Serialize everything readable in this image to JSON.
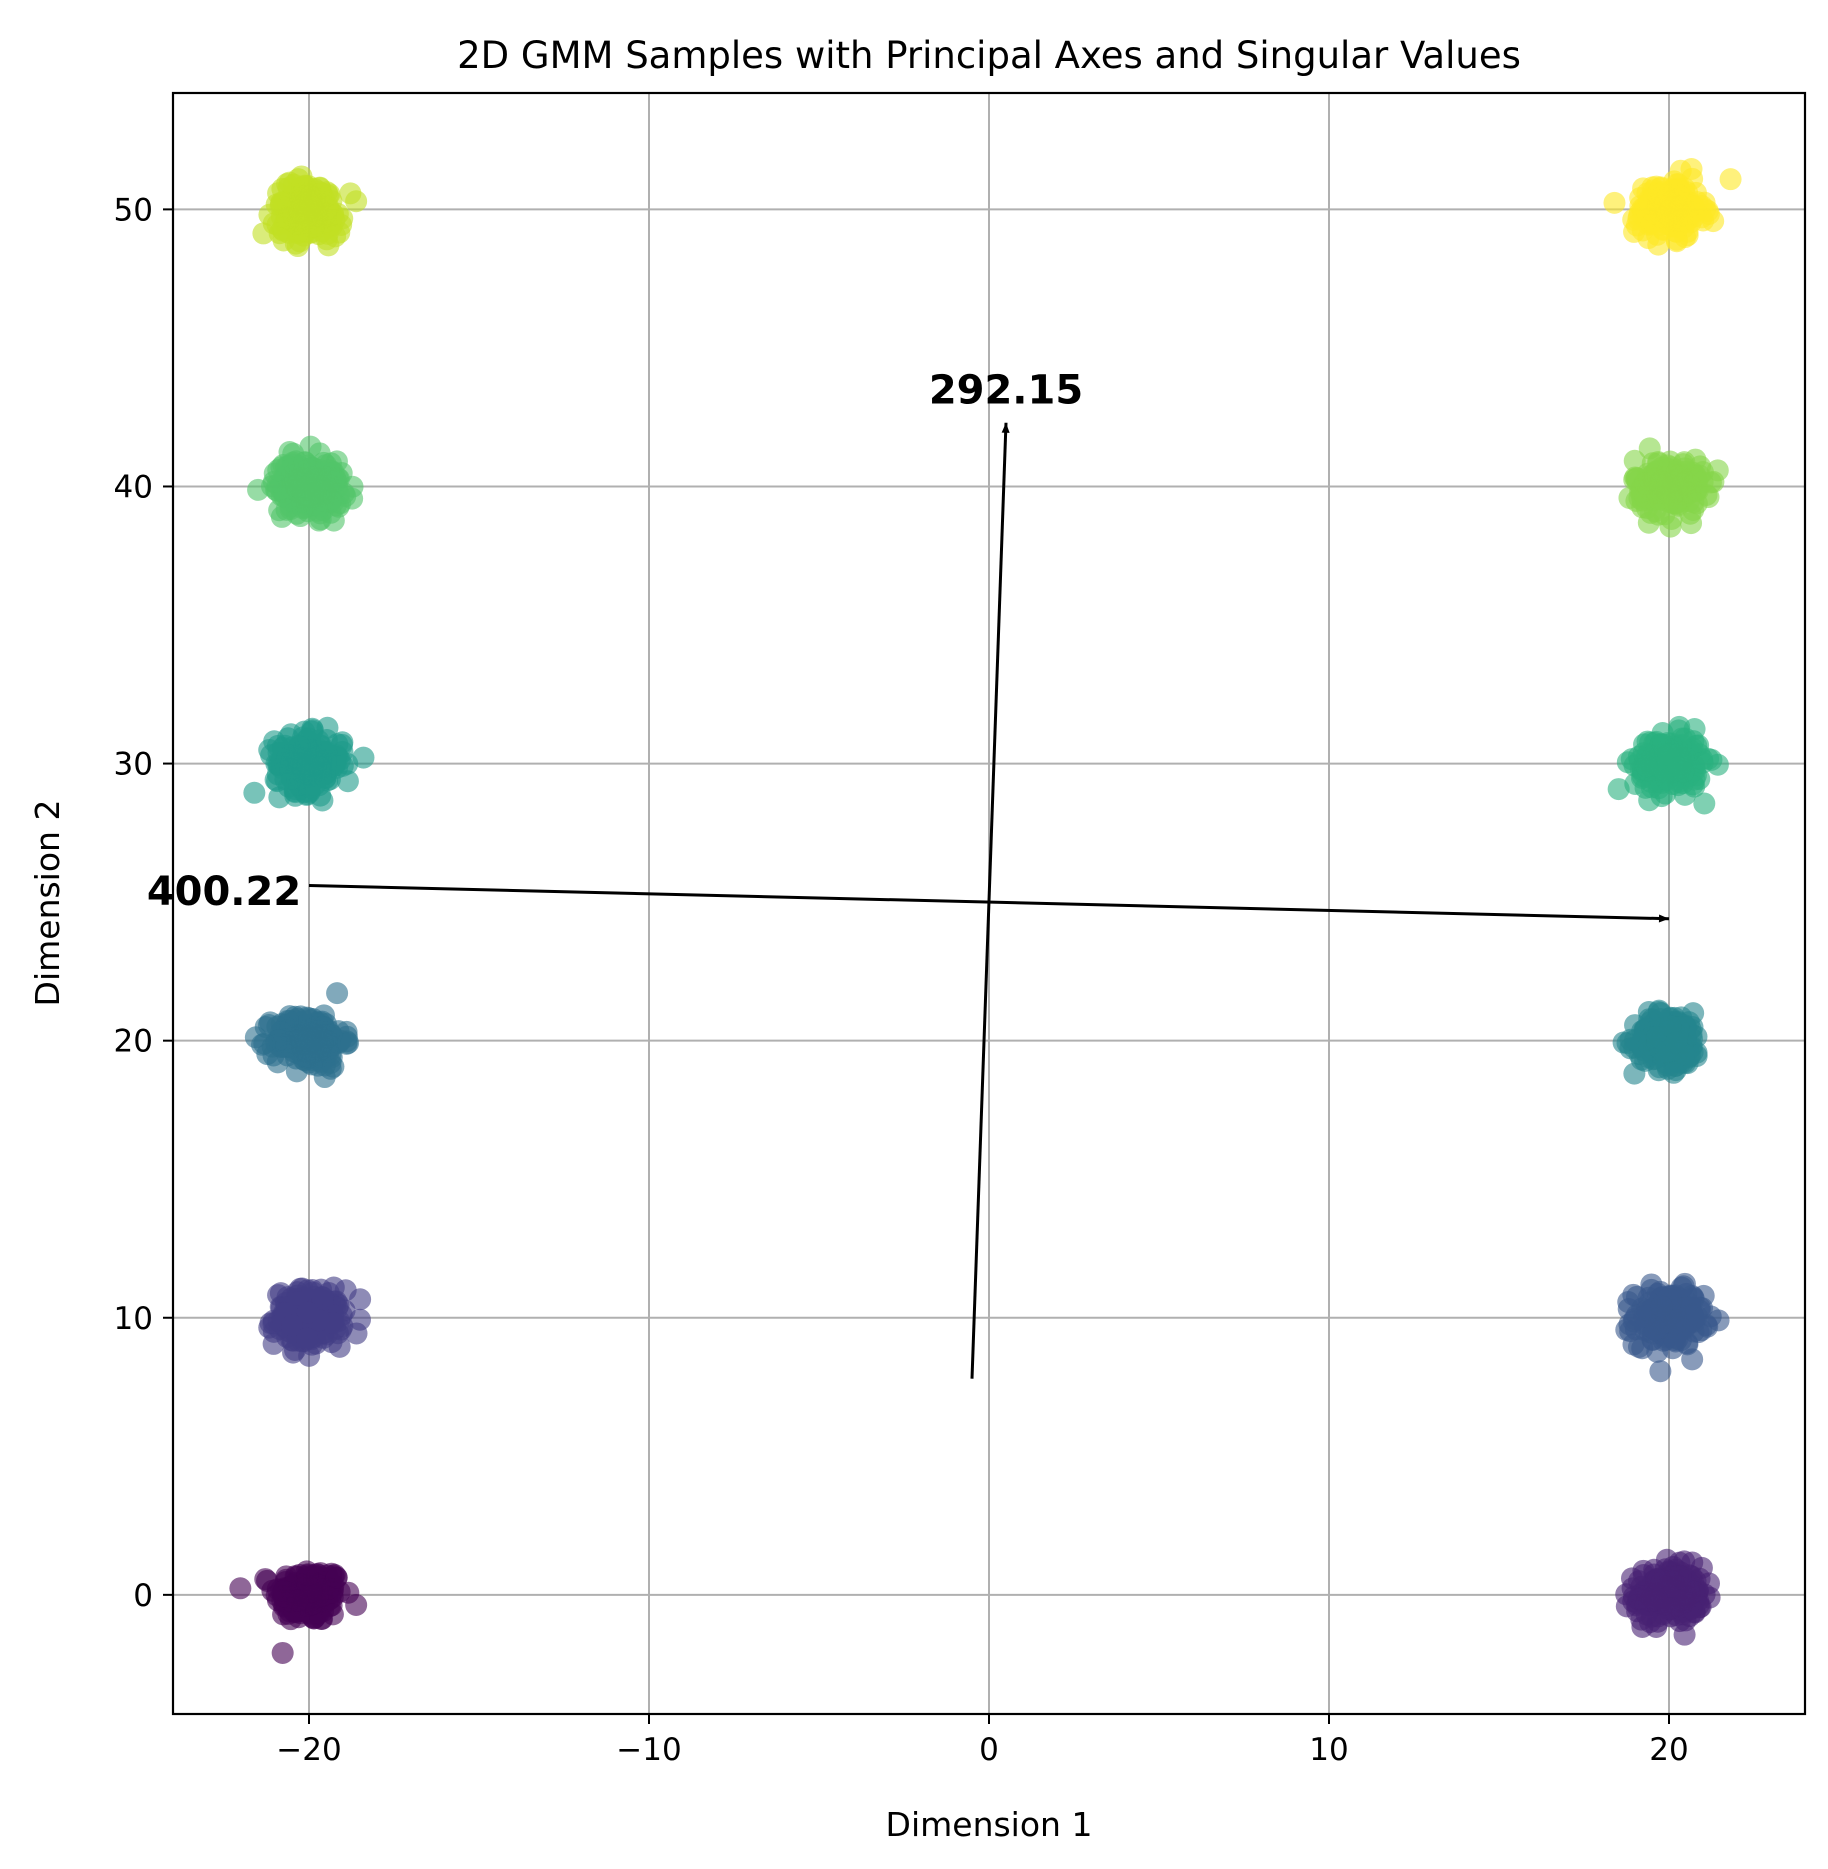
{
  "chart_data": {
    "type": "scatter",
    "title": "2D GMM Samples with Principal Axes and Singular Values",
    "xlabel": "Dimension 1",
    "ylabel": "Dimension 2",
    "xlim": [
      -24,
      24
    ],
    "ylim": [
      -4.3,
      54.2
    ],
    "xticks": [
      -20,
      -10,
      0,
      10,
      20
    ],
    "yticks": [
      0,
      10,
      20,
      30,
      40,
      50
    ],
    "xtick_labels": [
      "−20",
      "−10",
      "0",
      "10",
      "20"
    ],
    "ytick_labels": [
      "0",
      "10",
      "20",
      "30",
      "40",
      "50"
    ],
    "grid": true,
    "legend": "none",
    "colormap": "viridis",
    "marker_alpha": 0.6,
    "points_per_cluster": 200,
    "cluster_spread": 0.5,
    "clusters": [
      {
        "center": [
          -20,
          0
        ],
        "color": "#440154"
      },
      {
        "center": [
          20,
          0
        ],
        "color": "#482173"
      },
      {
        "center": [
          -20,
          10
        ],
        "color": "#433e85"
      },
      {
        "center": [
          20,
          10
        ],
        "color": "#38588c"
      },
      {
        "center": [
          -20,
          20
        ],
        "color": "#2d708e"
      },
      {
        "center": [
          20,
          20
        ],
        "color": "#25858e"
      },
      {
        "center": [
          -20,
          30
        ],
        "color": "#1e9b8a"
      },
      {
        "center": [
          20,
          30
        ],
        "color": "#2ab07f"
      },
      {
        "center": [
          -20,
          40
        ],
        "color": "#52c569"
      },
      {
        "center": [
          20,
          40
        ],
        "color": "#86d549"
      },
      {
        "center": [
          -20,
          50
        ],
        "color": "#c2df23"
      },
      {
        "center": [
          20,
          50
        ],
        "color": "#fde725"
      }
    ],
    "principal_axes": [
      {
        "start": [
          -20.0,
          25.6
        ],
        "end": [
          20.0,
          24.4
        ],
        "value_label": "400.22",
        "label_pos": [
          -22.5,
          25.4
        ]
      },
      {
        "start": [
          -0.5,
          7.8
        ],
        "end": [
          0.5,
          42.3
        ],
        "value_label": "292.15",
        "label_pos": [
          0.5,
          43.5
        ]
      }
    ]
  }
}
